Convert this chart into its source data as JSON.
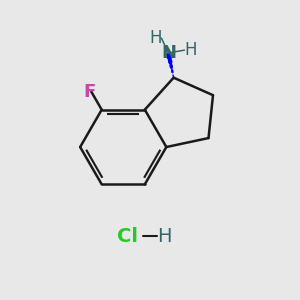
{
  "background_color": "#e8e8e8",
  "bond_color": "#1a1a1a",
  "bond_width": 1.8,
  "stereo_bond_color": "#0000ee",
  "F_color": "#cc44aa",
  "N_color": "#336666",
  "Cl_color": "#22cc22",
  "H_color": "#336666",
  "bond_H_color": "#336666",
  "label_F": "F",
  "label_N": "N",
  "label_Cl": "Cl",
  "label_H": "H",
  "font_size_main": 13,
  "font_size_H": 12
}
